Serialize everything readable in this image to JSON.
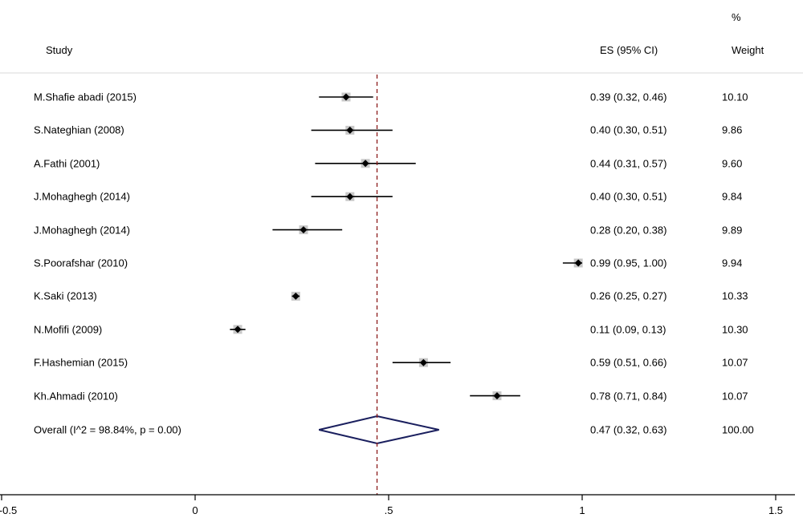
{
  "header": {
    "study": "Study",
    "es": "ES (95% CI)",
    "pct": "%",
    "weight": "Weight"
  },
  "chart_data": {
    "type": "forest",
    "x_ticks": [
      "-0.5",
      "0",
      ".5",
      "1",
      "1.5"
    ],
    "xlim": [
      -0.5,
      1.5
    ],
    "reference_line": 0.47,
    "studies": [
      {
        "label": "M.Shafie abadi (2015)",
        "es": 0.39,
        "lo": 0.32,
        "hi": 0.46,
        "es_text": "0.39 (0.32, 0.46)",
        "weight": "10.10"
      },
      {
        "label": "S.Nateghian (2008)",
        "es": 0.4,
        "lo": 0.3,
        "hi": 0.51,
        "es_text": "0.40 (0.30, 0.51)",
        "weight": "9.86"
      },
      {
        "label": "A.Fathi (2001)",
        "es": 0.44,
        "lo": 0.31,
        "hi": 0.57,
        "es_text": "0.44 (0.31, 0.57)",
        "weight": "9.60"
      },
      {
        "label": "J.Mohaghegh (2014)",
        "es": 0.4,
        "lo": 0.3,
        "hi": 0.51,
        "es_text": "0.40 (0.30, 0.51)",
        "weight": "9.84"
      },
      {
        "label": "J.Mohaghegh (2014)",
        "es": 0.28,
        "lo": 0.2,
        "hi": 0.38,
        "es_text": "0.28 (0.20, 0.38)",
        "weight": "9.89"
      },
      {
        "label": "S.Poorafshar (2010)",
        "es": 0.99,
        "lo": 0.95,
        "hi": 1.0,
        "es_text": "0.99 (0.95, 1.00)",
        "weight": "9.94"
      },
      {
        "label": "K.Saki (2013)",
        "es": 0.26,
        "lo": 0.25,
        "hi": 0.27,
        "es_text": "0.26 (0.25, 0.27)",
        "weight": "10.33"
      },
      {
        "label": "N.Mofifi (2009)",
        "es": 0.11,
        "lo": 0.09,
        "hi": 0.13,
        "es_text": "0.11 (0.09, 0.13)",
        "weight": "10.30"
      },
      {
        "label": "F.Hashemian (2015)",
        "es": 0.59,
        "lo": 0.51,
        "hi": 0.66,
        "es_text": "0.59 (0.51, 0.66)",
        "weight": "10.07"
      },
      {
        "label": "Kh.Ahmadi (2010)",
        "es": 0.78,
        "lo": 0.71,
        "hi": 0.84,
        "es_text": "0.78 (0.71, 0.84)",
        "weight": "10.07"
      }
    ],
    "overall": {
      "label": "Overall (I^2 = 98.84%, p = 0.00)",
      "es": 0.47,
      "lo": 0.32,
      "hi": 0.63,
      "es_text": "0.47 (0.32, 0.63)",
      "weight": "100.00"
    },
    "colors": {
      "reference_line": "#8b1a1a",
      "overall_diamond": "#1a1f5e",
      "marker": "#000000",
      "weight_box": "#c8c8c8"
    }
  }
}
